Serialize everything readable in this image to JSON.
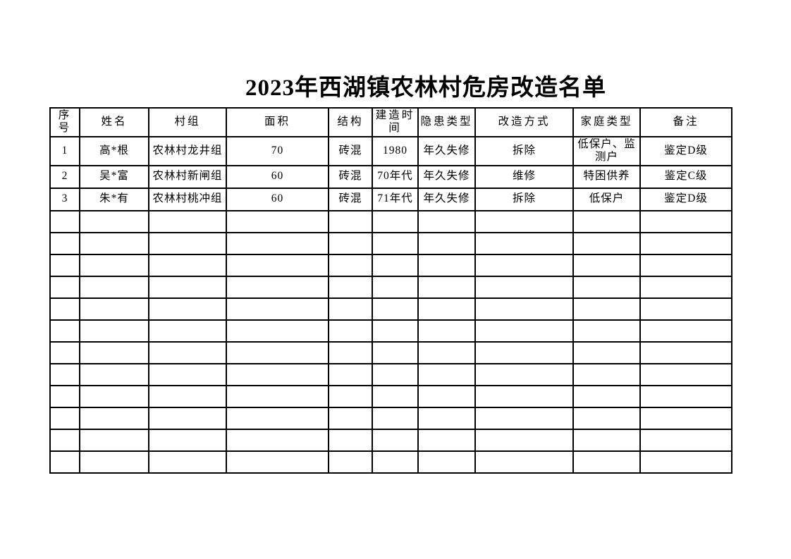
{
  "page": {
    "title": "2023年西湖镇农林村危房改造名单"
  },
  "table": {
    "columns": [
      {
        "key": "index",
        "label": "序号"
      },
      {
        "key": "name",
        "label": "姓名"
      },
      {
        "key": "village-group",
        "label": "村组"
      },
      {
        "key": "area",
        "label": "面积"
      },
      {
        "key": "structure",
        "label": "结构"
      },
      {
        "key": "build-time",
        "label": "建造时间"
      },
      {
        "key": "hazard-type",
        "label": "隐患类型"
      },
      {
        "key": "renovation-method",
        "label": "改造方式"
      },
      {
        "key": "family-type",
        "label": "家庭类型"
      },
      {
        "key": "remark",
        "label": "备注"
      }
    ],
    "rows": [
      [
        "1",
        "高*根",
        "农林村龙井组",
        "70",
        "砖混",
        "1980",
        "年久失修",
        "拆除",
        "低保户、监测户",
        "鉴定D级"
      ],
      [
        "2",
        "吴*富",
        "农林村新闸组",
        "60",
        "砖混",
        "70年代",
        "年久失修",
        "维修",
        "特困供养",
        "鉴定C级"
      ],
      [
        "3",
        "朱*有",
        "农林村桃冲组",
        "60",
        "砖混",
        "71年代",
        "年久失修",
        "拆除",
        "低保户",
        "鉴定D级"
      ]
    ],
    "empty_row_count": 12
  }
}
